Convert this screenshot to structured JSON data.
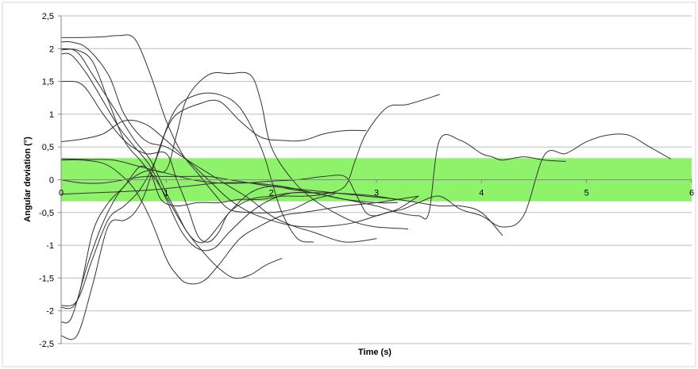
{
  "chart_data": {
    "type": "line",
    "title": "",
    "xlabel": "Time (s)",
    "ylabel": "Angular deviation (°)",
    "xlim": [
      0,
      6
    ],
    "ylim": [
      -2.5,
      2.5
    ],
    "x_ticks": [
      0,
      1,
      2,
      3,
      4,
      5,
      6
    ],
    "y_ticks": [
      -2.5,
      -2,
      -1.5,
      -1,
      -0.5,
      0,
      0.5,
      1,
      1.5,
      2,
      2.5
    ],
    "x_tick_labels": [
      "0",
      "1",
      "2",
      "3",
      "4",
      "5",
      "6"
    ],
    "y_tick_labels": [
      "-2,5",
      "-2",
      "-1,5",
      "-1",
      "-0,5",
      "0",
      "0,5",
      "1",
      "1,5",
      "2",
      "2,5"
    ],
    "grid": true,
    "legend": "none",
    "band": {
      "y_min": -0.33,
      "y_max": 0.33,
      "color": "#8ef26a"
    },
    "line_color": "#333333",
    "series": [
      {
        "x": [
          0,
          0.2,
          0.4,
          0.55,
          0.7,
          0.85,
          1.0,
          1.15,
          1.3,
          1.45,
          1.6,
          1.8,
          2.0,
          2.2,
          2.4,
          2.6
        ],
        "y": [
          2.17,
          2.17,
          2.18,
          2.2,
          2.15,
          1.6,
          0.9,
          0.4,
          0.1,
          -0.2,
          -0.45,
          -0.5,
          -0.5,
          -0.45,
          -0.3,
          -0.22
        ]
      },
      {
        "x": [
          0,
          0.1,
          0.25,
          0.45,
          0.6,
          0.8,
          1.0,
          1.2,
          1.4,
          1.6,
          1.8,
          2.0,
          2.2,
          2.4,
          2.7,
          3.0
        ],
        "y": [
          2.1,
          2.1,
          2.0,
          1.6,
          1.0,
          0.6,
          0.5,
          0.3,
          0.1,
          -0.1,
          -0.3,
          -0.55,
          -0.7,
          -0.8,
          -0.95,
          -0.9
        ]
      },
      {
        "x": [
          0,
          0.15,
          0.3,
          0.45,
          0.6,
          0.75,
          0.9,
          1.05,
          1.2,
          1.35,
          1.5,
          1.65,
          1.8,
          1.95,
          2.1
        ],
        "y": [
          1.98,
          1.98,
          1.8,
          1.2,
          0.6,
          0.3,
          0.0,
          -0.4,
          -0.8,
          -1.1,
          -1.35,
          -1.5,
          -1.45,
          -1.3,
          -1.2
        ]
      },
      {
        "x": [
          0,
          0.1,
          0.25,
          0.4,
          0.55,
          0.7,
          0.85,
          1.0,
          1.15,
          1.3,
          1.45,
          1.6,
          1.8,
          2.0,
          2.2,
          2.4,
          2.6
        ],
        "y": [
          1.92,
          1.9,
          1.6,
          1.2,
          0.8,
          0.5,
          0.2,
          -0.3,
          -0.8,
          -1.05,
          -1.05,
          -0.8,
          -0.5,
          -0.3,
          -0.2,
          -0.2,
          -0.2
        ]
      },
      {
        "x": [
          0,
          0.15,
          0.3,
          0.5,
          0.7,
          0.85,
          1.0,
          1.1,
          1.2,
          1.3,
          1.4,
          1.6,
          1.8,
          2.0,
          2.2,
          2.4,
          2.7,
          3.0,
          3.2
        ],
        "y": [
          2.0,
          1.95,
          1.6,
          1.1,
          0.6,
          0.3,
          -0.2,
          -0.5,
          -0.8,
          -0.95,
          -0.9,
          -0.5,
          -0.2,
          -0.1,
          -0.15,
          -0.2,
          -0.3,
          -0.35,
          -0.35
        ]
      },
      {
        "x": [
          0,
          0.2,
          0.4,
          0.6,
          0.8,
          1.0,
          1.1,
          1.2,
          1.3,
          1.4,
          1.5,
          1.6,
          1.8,
          2.0,
          2.2,
          2.5,
          2.8,
          3.0,
          3.2
        ],
        "y": [
          1.5,
          1.45,
          1.0,
          0.6,
          0.4,
          0.4,
          0.0,
          -0.4,
          -0.85,
          -0.95,
          -0.8,
          -0.5,
          -0.3,
          -0.25,
          -0.2,
          -0.2,
          -0.22,
          -0.25,
          -0.3
        ]
      },
      {
        "x": [
          0,
          0.2,
          0.4,
          0.55,
          0.7,
          0.85,
          1.0,
          1.1,
          1.2,
          1.35,
          1.5,
          1.7,
          1.9,
          2.1,
          2.3,
          2.5,
          2.7,
          3.0,
          3.2,
          3.4
        ],
        "y": [
          0.3,
          0.3,
          0.25,
          0.1,
          -0.15,
          -0.6,
          -1.2,
          -1.45,
          -1.58,
          -1.55,
          -1.3,
          -0.9,
          -0.7,
          -0.55,
          -0.5,
          -0.45,
          -0.4,
          -0.35,
          -0.3,
          -0.25
        ]
      },
      {
        "x": [
          0,
          0.2,
          0.4,
          0.6,
          0.8,
          1.0,
          1.2,
          1.4,
          1.6,
          1.8,
          2.0,
          2.2,
          2.4,
          2.6,
          2.8,
          3.0,
          3.2,
          3.4
        ],
        "y": [
          0.58,
          0.62,
          0.7,
          0.9,
          0.85,
          0.6,
          0.3,
          0.0,
          -0.3,
          -0.5,
          -0.62,
          -0.7,
          -0.72,
          -0.7,
          -0.65,
          -0.55,
          -0.45,
          -0.25
        ]
      },
      {
        "x": [
          0,
          0.15,
          0.3,
          0.45,
          0.6,
          0.7,
          0.8,
          0.95,
          1.1,
          1.3,
          1.5,
          1.7,
          1.9,
          2.0,
          2.1,
          2.25,
          2.4
        ],
        "y": [
          -2.38,
          -2.38,
          -1.6,
          -0.7,
          -0.62,
          -0.5,
          -0.2,
          0.55,
          1.1,
          1.3,
          1.3,
          1.1,
          0.5,
          0.0,
          -0.5,
          -0.9,
          -0.95
        ]
      },
      {
        "x": [
          0,
          0.15,
          0.3,
          0.45,
          0.6,
          0.75,
          0.9,
          1.0,
          1.1,
          1.3,
          1.5,
          1.7,
          1.9,
          2.1,
          2.3,
          2.5,
          2.7,
          2.9
        ],
        "y": [
          -1.92,
          -1.85,
          -1.2,
          -0.6,
          -0.4,
          -0.15,
          0.3,
          0.75,
          1.0,
          1.15,
          1.2,
          0.9,
          0.65,
          0.6,
          0.6,
          0.7,
          0.75,
          0.75
        ]
      },
      {
        "x": [
          0,
          0.1,
          0.25,
          0.4,
          0.55,
          0.7,
          0.85,
          1.0,
          1.1,
          1.2,
          1.4,
          1.6,
          1.8,
          1.9,
          2.0,
          2.2,
          2.4,
          2.6,
          2.8,
          3.0,
          3.3
        ],
        "y": [
          -2.17,
          -2.1,
          -1.3,
          -0.65,
          -0.2,
          0.05,
          0.15,
          0.15,
          0.7,
          1.25,
          1.6,
          1.62,
          1.6,
          1.2,
          0.5,
          0.0,
          -0.3,
          -0.5,
          -0.65,
          -0.72,
          -0.75
        ]
      },
      {
        "x": [
          0,
          0.15,
          0.3,
          0.45,
          0.6,
          0.75,
          0.85,
          0.95,
          1.1,
          1.3,
          1.5,
          1.7,
          1.9,
          2.1,
          2.3,
          2.5,
          2.7,
          2.8,
          2.9,
          3.1,
          3.3,
          3.6
        ],
        "y": [
          -1.95,
          -1.85,
          -0.8,
          -0.35,
          -0.1,
          0.2,
          0.1,
          -0.3,
          -0.4,
          -0.35,
          -0.35,
          -0.3,
          -0.3,
          -0.25,
          -0.25,
          -0.22,
          -0.1,
          0.3,
          0.7,
          1.1,
          1.15,
          1.3
        ]
      },
      {
        "x": [
          0,
          0.25,
          0.5,
          0.75,
          1.0,
          1.25,
          1.5,
          1.75,
          2.0,
          2.25,
          2.5,
          2.7,
          2.8,
          2.9,
          3.0,
          3.1,
          3.25,
          3.4,
          3.6,
          3.8,
          4.0,
          4.2,
          4.4,
          4.6,
          4.8,
          5.0,
          5.2,
          5.4,
          5.6,
          5.8
        ],
        "y": [
          0.32,
          0.31,
          0.3,
          0.2,
          0.1,
          0.0,
          -0.05,
          -0.05,
          -0.02,
          0.0,
          0.05,
          0.05,
          -0.2,
          -0.5,
          -0.55,
          -0.5,
          -0.45,
          -0.35,
          -0.25,
          -0.45,
          -0.55,
          -0.72,
          -0.55,
          0.38,
          0.4,
          0.58,
          0.68,
          0.68,
          0.5,
          0.32
        ]
      },
      {
        "x": [
          0,
          0.2,
          0.4,
          0.6,
          0.8,
          1.0,
          1.2,
          1.4,
          1.6,
          1.8,
          2.0,
          2.3,
          2.6,
          2.9,
          3.2,
          3.4,
          3.6,
          3.8,
          4.0,
          4.2
        ],
        "y": [
          0.0,
          -0.05,
          -0.05,
          0.0,
          0.05,
          0.05,
          0.05,
          0.05,
          0.0,
          -0.05,
          -0.1,
          -0.15,
          -0.2,
          -0.25,
          -0.3,
          -0.35,
          -0.4,
          -0.4,
          -0.5,
          -0.85
        ]
      },
      {
        "x": [
          0,
          0.3,
          0.6,
          0.9,
          1.2,
          1.5,
          1.8,
          2.1,
          2.4,
          2.7,
          3.0,
          3.2,
          3.4,
          3.5,
          3.6,
          3.8,
          4.0,
          4.1,
          4.2,
          4.4,
          4.6,
          4.8
        ],
        "y": [
          -0.22,
          -0.2,
          -0.18,
          -0.15,
          -0.1,
          -0.05,
          -0.05,
          -0.1,
          -0.2,
          -0.3,
          -0.4,
          -0.5,
          -0.55,
          -0.5,
          0.6,
          0.6,
          0.4,
          0.35,
          0.3,
          0.35,
          0.3,
          0.28
        ]
      }
    ]
  }
}
